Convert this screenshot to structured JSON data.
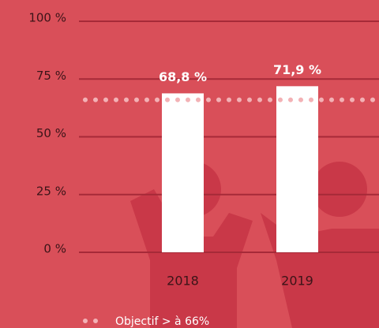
{
  "chart_data": {
    "type": "bar",
    "categories": [
      "2018",
      "2019"
    ],
    "values": [
      68.8,
      71.9
    ],
    "value_labels": [
      "68,8 %",
      "71,9 %"
    ],
    "color": "#ffffff",
    "ylim": [
      0,
      100
    ],
    "yticks": [
      {
        "value": 0,
        "label": "0 %"
      },
      {
        "value": 25,
        "label": "25 %"
      },
      {
        "value": 50,
        "label": "50 %"
      },
      {
        "value": 75,
        "label": "75 %"
      },
      {
        "value": 100,
        "label": "100 %"
      }
    ],
    "grid": true,
    "target": {
      "value": 66,
      "label": "Objectif > à 66%",
      "color": "#f3b1b5"
    }
  }
}
